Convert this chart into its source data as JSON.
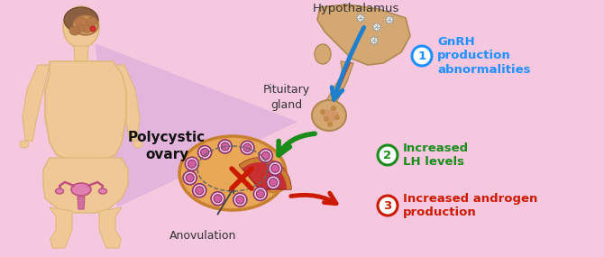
{
  "background_color": "#f5c8e0",
  "labels": {
    "hypothalamus": "Hypothalamus",
    "pituitary": "Pituitary\ngland",
    "polycystic": "Polycystic\novary",
    "anovulation": "Anovulation"
  },
  "numbered_labels": [
    {
      "num": "1",
      "color": "#1e90ff",
      "lines": [
        "GnRH",
        "production",
        "abnormalities"
      ]
    },
    {
      "num": "2",
      "color": "#1a8c1a",
      "lines": [
        "Increased",
        "LH levels"
      ]
    },
    {
      "num": "3",
      "color": "#cc1a00",
      "lines": [
        "Increased androgen",
        "production"
      ]
    }
  ],
  "skin_color": "#f0c896",
  "skin_edge": "#ddb87a",
  "brain_main": "#c8945a",
  "brain_fold": "#a87040",
  "hyp_color": "#d4a870",
  "hyp_edge": "#b08850",
  "pit_color": "#d4a870",
  "pit_edge": "#b08850",
  "ovary_fill": "#e8a855",
  "ovary_edge": "#c88030",
  "red_area": "#c83030",
  "follicle_fill": "#d060a0",
  "follicle_edge": "#903070",
  "follicle_ring": "#e8c0d8",
  "arrow_blue": "#1e7fcc",
  "arrow_green": "#1a8c1a",
  "arrow_red": "#cc1a00",
  "purple_beam": "#d0a0d8",
  "label_color": "#333333",
  "uterus_color": "#e080b0",
  "uterus_edge": "#c05080"
}
